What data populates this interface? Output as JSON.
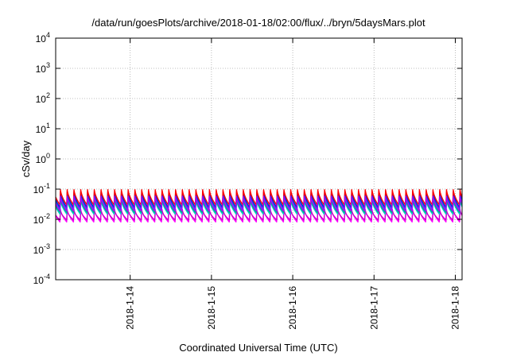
{
  "chart_data": {
    "type": "line",
    "title": "/data/run/goesPlots/archive/2018-01-18/02:00/flux/../bryn/5daysMars.plot",
    "xlabel": "Coordinated Universal Time (UTC)",
    "ylabel": "cSv/day",
    "y_scale": "log",
    "ylim": [
      0.0001,
      10000
    ],
    "y_ticks": [
      {
        "base": "10",
        "exp": "-4",
        "value": 0.0001
      },
      {
        "base": "10",
        "exp": "-3",
        "value": 0.001
      },
      {
        "base": "10",
        "exp": "-2",
        "value": 0.01
      },
      {
        "base": "10",
        "exp": "-1",
        "value": 0.1
      },
      {
        "base": "10",
        "exp": "0",
        "value": 1
      },
      {
        "base": "10",
        "exp": "1",
        "value": 10
      },
      {
        "base": "10",
        "exp": "2",
        "value": 100
      },
      {
        "base": "10",
        "exp": "3",
        "value": 1000
      },
      {
        "base": "10",
        "exp": "4",
        "value": 10000
      }
    ],
    "xlim": [
      "2018-01-13T02:00",
      "2018-01-18T02:00"
    ],
    "x_ticks": [
      "2018-1-14",
      "2018-1-15",
      "2018-1-16",
      "2018-1-17",
      "2018-1-18"
    ],
    "grid": true,
    "legend": "none",
    "series_period_hours": 2,
    "series": [
      {
        "color": "#ff00ff",
        "peak": 0.022,
        "trough": 0.0082
      },
      {
        "color": "#cc00cc",
        "peak": 0.02,
        "trough": 0.0095
      },
      {
        "color": "#00cccc",
        "peak": 0.045,
        "trough": 0.015
      },
      {
        "color": "#00aa88",
        "peak": 0.05,
        "trough": 0.017
      },
      {
        "color": "#2255ff",
        "peak": 0.075,
        "trough": 0.022
      },
      {
        "color": "#0033cc",
        "peak": 0.085,
        "trough": 0.025
      },
      {
        "color": "#ff0000",
        "peak": 0.1,
        "trough": 0.03
      },
      {
        "color": "#aa00ff",
        "peak": 0.06,
        "trough": 0.019
      }
    ]
  }
}
